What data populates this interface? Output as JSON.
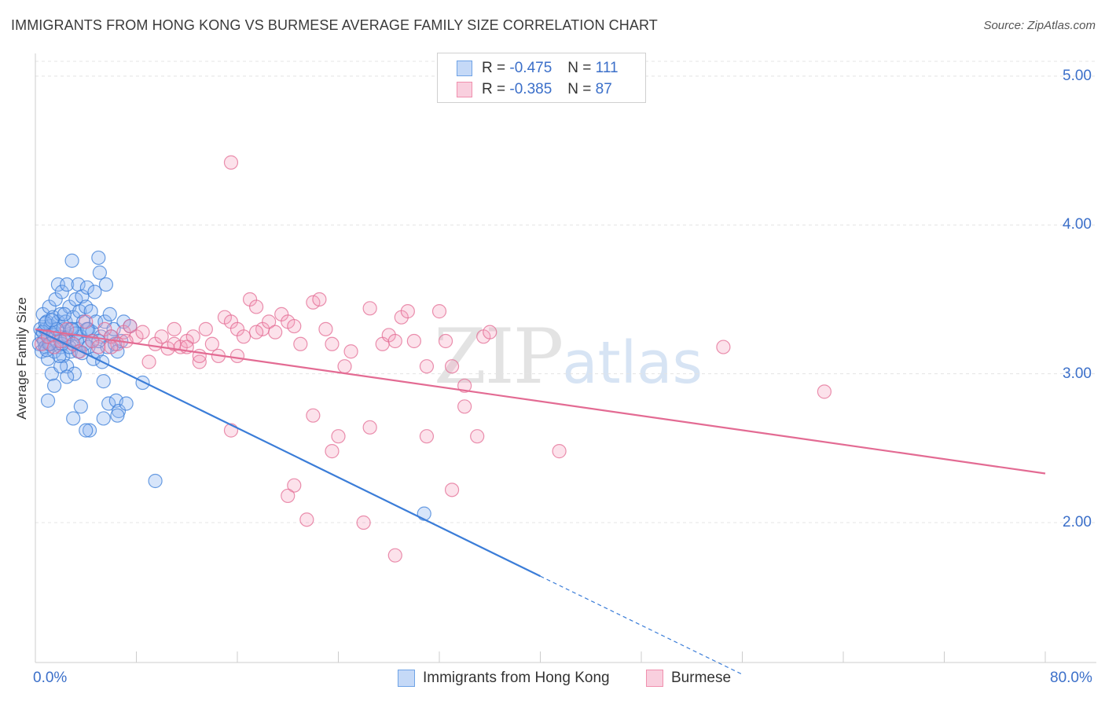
{
  "header": {
    "title": "IMMIGRANTS FROM HONG KONG VS BURMESE AVERAGE FAMILY SIZE CORRELATION CHART",
    "source": "Source: ZipAtlas.com"
  },
  "watermark": {
    "zip": "ZIP",
    "atlas": "atlas"
  },
  "legend": {
    "rows": [
      {
        "r_label": "R =",
        "r_value": "-0.475",
        "n_label": "N =",
        "n_value": "111",
        "color": "#6fa3e6"
      },
      {
        "r_label": "R =",
        "r_value": "-0.385",
        "n_label": "N =",
        "n_value": "87",
        "color": "#f090ae"
      }
    ]
  },
  "bottom_legend": [
    {
      "label": "Immigrants from Hong Kong",
      "color": "#6fa3e6"
    },
    {
      "label": "Burmese",
      "color": "#f090ae"
    }
  ],
  "chart_data": {
    "type": "scatter",
    "title": "IMMIGRANTS FROM HONG KONG VS BURMESE AVERAGE FAMILY SIZE CORRELATION CHART",
    "xlabel": "",
    "ylabel": "Average Family Size",
    "xlim": [
      0,
      80
    ],
    "ylim": [
      1.06,
      5.1
    ],
    "x_tick_labels": [
      "0.0%",
      "80.0%"
    ],
    "y_ticks": [
      2.0,
      3.0,
      4.0,
      5.0
    ],
    "y_tick_labels": [
      "2.00",
      "3.00",
      "4.00",
      "5.00"
    ],
    "grid": true,
    "series": [
      {
        "name": "Immigrants from Hong Kong",
        "color": "#3b7dd8",
        "fill": "rgba(140,180,240,0.35)",
        "trend": {
          "x0": 0,
          "y0": 3.3,
          "x1": 40,
          "y1": 1.64,
          "dash_to_x": 56,
          "dash_to_y": 0.98
        },
        "points": [
          [
            0.3,
            3.2
          ],
          [
            0.4,
            3.3
          ],
          [
            0.5,
            3.25
          ],
          [
            0.5,
            3.15
          ],
          [
            0.6,
            3.4
          ],
          [
            0.7,
            3.22
          ],
          [
            0.8,
            3.3
          ],
          [
            0.8,
            3.18
          ],
          [
            0.9,
            3.35
          ],
          [
            1.0,
            3.25
          ],
          [
            1.0,
            3.1
          ],
          [
            1.1,
            3.45
          ],
          [
            1.2,
            3.32
          ],
          [
            1.2,
            3.2
          ],
          [
            1.3,
            3.0
          ],
          [
            1.4,
            3.38
          ],
          [
            1.5,
            3.28
          ],
          [
            1.5,
            3.15
          ],
          [
            1.6,
            3.5
          ],
          [
            1.7,
            3.22
          ],
          [
            1.8,
            3.35
          ],
          [
            1.8,
            3.6
          ],
          [
            1.9,
            3.25
          ],
          [
            2.0,
            3.18
          ],
          [
            2.0,
            3.4
          ],
          [
            2.1,
            3.55
          ],
          [
            2.2,
            3.3
          ],
          [
            2.2,
            3.12
          ],
          [
            2.3,
            3.22
          ],
          [
            2.4,
            3.35
          ],
          [
            2.5,
            3.05
          ],
          [
            2.5,
            3.6
          ],
          [
            2.6,
            3.25
          ],
          [
            2.7,
            3.45
          ],
          [
            2.8,
            3.3
          ],
          [
            2.8,
            3.15
          ],
          [
            2.9,
            3.76
          ],
          [
            3.0,
            3.38
          ],
          [
            3.0,
            3.2
          ],
          [
            3.1,
            3.0
          ],
          [
            3.2,
            3.5
          ],
          [
            3.3,
            3.3
          ],
          [
            3.4,
            3.6
          ],
          [
            3.4,
            3.15
          ],
          [
            3.5,
            3.42
          ],
          [
            3.6,
            2.78
          ],
          [
            3.6,
            3.25
          ],
          [
            3.7,
            3.52
          ],
          [
            3.8,
            3.35
          ],
          [
            3.9,
            3.2
          ],
          [
            4.0,
            3.45
          ],
          [
            4.1,
            3.58
          ],
          [
            4.2,
            3.3
          ],
          [
            4.2,
            3.18
          ],
          [
            4.3,
            2.62
          ],
          [
            4.4,
            3.42
          ],
          [
            4.5,
            3.28
          ],
          [
            4.6,
            3.1
          ],
          [
            4.7,
            3.55
          ],
          [
            4.8,
            3.35
          ],
          [
            4.9,
            3.15
          ],
          [
            5.0,
            3.78
          ],
          [
            5.1,
            3.68
          ],
          [
            5.2,
            3.25
          ],
          [
            5.3,
            3.08
          ],
          [
            5.4,
            2.95
          ],
          [
            5.4,
            2.7
          ],
          [
            5.5,
            3.35
          ],
          [
            5.6,
            3.6
          ],
          [
            5.7,
            3.18
          ],
          [
            5.8,
            2.8
          ],
          [
            5.9,
            3.4
          ],
          [
            6.0,
            3.25
          ],
          [
            6.2,
            3.3
          ],
          [
            6.3,
            3.2
          ],
          [
            6.4,
            2.82
          ],
          [
            6.5,
            3.15
          ],
          [
            6.6,
            2.75
          ],
          [
            6.8,
            3.22
          ],
          [
            7.0,
            3.35
          ],
          [
            7.2,
            2.8
          ],
          [
            7.5,
            3.32
          ],
          [
            1.0,
            2.82
          ],
          [
            1.5,
            2.92
          ],
          [
            2.0,
            3.05
          ],
          [
            2.5,
            2.98
          ],
          [
            3.0,
            2.7
          ],
          [
            4.0,
            2.62
          ],
          [
            6.5,
            2.72
          ],
          [
            8.5,
            2.94
          ],
          [
            0.6,
            3.28
          ],
          [
            0.9,
            3.16
          ],
          [
            1.1,
            3.2
          ],
          [
            1.4,
            3.26
          ],
          [
            1.7,
            3.3
          ],
          [
            2.1,
            3.2
          ],
          [
            2.4,
            3.24
          ],
          [
            2.7,
            3.18
          ],
          [
            3.2,
            3.27
          ],
          [
            3.7,
            3.14
          ],
          [
            4.5,
            3.22
          ],
          [
            0.8,
            3.34
          ],
          [
            1.3,
            3.36
          ],
          [
            1.9,
            3.12
          ],
          [
            2.3,
            3.4
          ],
          [
            2.9,
            3.3
          ],
          [
            3.3,
            3.22
          ],
          [
            4.1,
            3.3
          ],
          [
            5.0,
            3.22
          ],
          [
            9.5,
            2.28
          ],
          [
            30.8,
            2.06
          ]
        ]
      },
      {
        "name": "Burmese",
        "color": "#e36b93",
        "fill": "rgba(244,160,190,0.30)",
        "trend": {
          "x0": 0,
          "y0": 3.3,
          "x1": 80,
          "y1": 2.33
        },
        "points": [
          [
            0.5,
            3.2
          ],
          [
            1.0,
            3.25
          ],
          [
            1.5,
            3.18
          ],
          [
            2.0,
            3.22
          ],
          [
            2.5,
            3.3
          ],
          [
            3.0,
            3.2
          ],
          [
            3.5,
            3.15
          ],
          [
            4.0,
            3.35
          ],
          [
            4.5,
            3.22
          ],
          [
            5.0,
            3.18
          ],
          [
            5.5,
            3.3
          ],
          [
            6.0,
            3.25
          ],
          [
            6.5,
            3.2
          ],
          [
            7.0,
            3.28
          ],
          [
            7.5,
            3.32
          ],
          [
            8.0,
            3.25
          ],
          [
            9.0,
            3.08
          ],
          [
            9.5,
            3.2
          ],
          [
            10.0,
            3.25
          ],
          [
            10.5,
            3.17
          ],
          [
            11.0,
            3.2
          ],
          [
            11.5,
            3.18
          ],
          [
            12.0,
            3.22
          ],
          [
            12.5,
            3.25
          ],
          [
            13.0,
            3.08
          ],
          [
            13.5,
            3.3
          ],
          [
            14.0,
            3.2
          ],
          [
            14.5,
            3.12
          ],
          [
            15.0,
            3.38
          ],
          [
            15.5,
            3.35
          ],
          [
            16.0,
            3.3
          ],
          [
            16.5,
            3.25
          ],
          [
            17.0,
            3.5
          ],
          [
            17.5,
            3.45
          ],
          [
            18.0,
            3.3
          ],
          [
            18.5,
            3.35
          ],
          [
            19.0,
            3.28
          ],
          [
            19.5,
            3.4
          ],
          [
            20.0,
            3.35
          ],
          [
            20.5,
            3.32
          ],
          [
            21.0,
            3.2
          ],
          [
            22.0,
            3.48
          ],
          [
            22.5,
            3.5
          ],
          [
            23.0,
            3.3
          ],
          [
            23.5,
            3.2
          ],
          [
            25.0,
            3.15
          ],
          [
            26.5,
            3.44
          ],
          [
            27.5,
            3.2
          ],
          [
            28.0,
            3.26
          ],
          [
            28.5,
            3.22
          ],
          [
            29.0,
            3.38
          ],
          [
            29.5,
            3.42
          ],
          [
            30.0,
            3.22
          ],
          [
            31.0,
            3.05
          ],
          [
            32.0,
            3.42
          ],
          [
            32.5,
            3.22
          ],
          [
            33.0,
            3.05
          ],
          [
            34.0,
            2.92
          ],
          [
            35.5,
            3.25
          ],
          [
            36.0,
            3.28
          ],
          [
            15.5,
            2.62
          ],
          [
            20.5,
            2.25
          ],
          [
            20.0,
            2.18
          ],
          [
            21.5,
            2.02
          ],
          [
            22.0,
            2.72
          ],
          [
            23.5,
            2.48
          ],
          [
            24.0,
            2.58
          ],
          [
            26.0,
            2.0
          ],
          [
            26.5,
            2.64
          ],
          [
            28.5,
            1.78
          ],
          [
            31.0,
            2.58
          ],
          [
            33.0,
            2.22
          ],
          [
            34.0,
            2.78
          ],
          [
            35.0,
            2.58
          ],
          [
            41.5,
            2.48
          ],
          [
            54.5,
            3.18
          ],
          [
            62.5,
            2.88
          ],
          [
            15.5,
            4.42
          ],
          [
            13.0,
            3.12
          ],
          [
            11.0,
            3.3
          ],
          [
            7.2,
            3.22
          ],
          [
            6.0,
            3.18
          ],
          [
            8.5,
            3.28
          ],
          [
            12.0,
            3.18
          ],
          [
            16.0,
            3.12
          ],
          [
            17.5,
            3.28
          ],
          [
            24.5,
            3.05
          ]
        ]
      }
    ]
  }
}
